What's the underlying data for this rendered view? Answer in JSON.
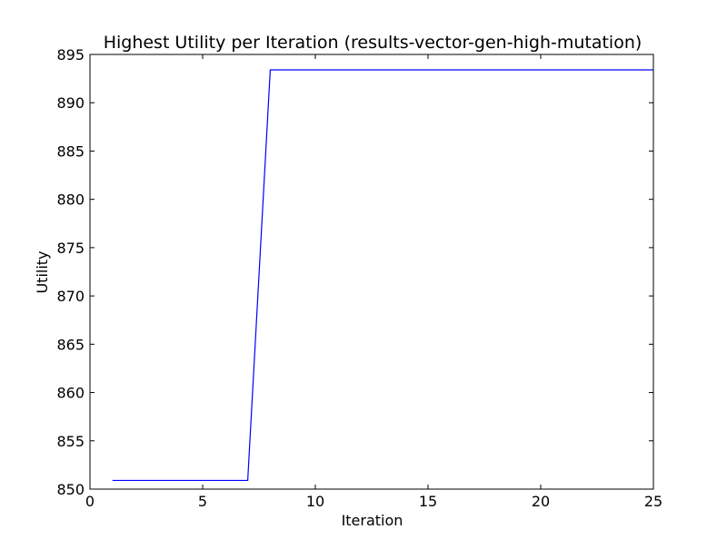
{
  "chart_data": {
    "type": "line",
    "title": "Highest Utility per Iteration (results-vector-gen-high-mutation)",
    "xlabel": "Iteration",
    "ylabel": "Utility",
    "xlim": [
      0,
      25
    ],
    "ylim": [
      850,
      895
    ],
    "xticks": [
      0,
      5,
      10,
      15,
      20,
      25
    ],
    "yticks": [
      850,
      855,
      860,
      865,
      870,
      875,
      880,
      885,
      890,
      895
    ],
    "grid": false,
    "legend": "none",
    "series": [
      {
        "color": "#0000ff",
        "x": [
          1,
          2,
          3,
          4,
          5,
          6,
          7,
          8,
          9,
          10,
          11,
          12,
          13,
          14,
          15,
          16,
          17,
          18,
          19,
          20,
          21,
          22,
          23,
          24,
          25
        ],
        "values": [
          850.9,
          850.9,
          850.9,
          850.9,
          850.9,
          850.9,
          850.9,
          893.4,
          893.4,
          893.4,
          893.4,
          893.4,
          893.4,
          893.4,
          893.4,
          893.4,
          893.4,
          893.4,
          893.4,
          893.4,
          893.4,
          893.4,
          893.4,
          893.4,
          893.4
        ]
      }
    ]
  }
}
